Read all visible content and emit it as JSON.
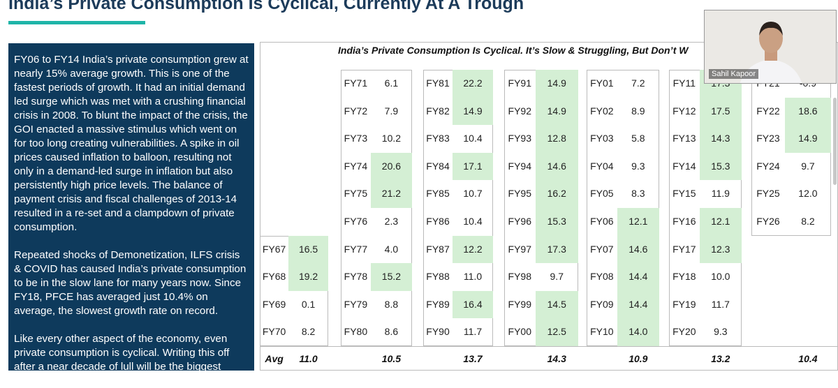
{
  "header": {
    "title": "India’s Private Consumption Is Cyclical, Currently At A Trough"
  },
  "sidebar": {
    "paragraphs": [
      "FY06 to FY14 India’s private consumption grew at nearly 15% average growth. This is one of the fastest periods of growth. It had an initial demand led surge which was met with a crushing financial crisis in 2008. To blunt the impact of the crisis, the GOI enacted a massive stimulus which went on for too long creating vulnerabilities. A spike in oil prices caused inflation to balloon, resulting not only in a demand-led surge in inflation but also persistently high price levels. The balance of payment crisis and fiscal challenges of 2013-14 resulted in a re-set and a clampdown of private consumption.",
      "Repeated shocks of Demonetization, ILFS crisis & COVID has caused India’s private consumption to be in the slow lane for many years now. Since FY18, PFCE has averaged just 10.4% on average, the slowest growth rate on record.",
      "Like every other aspect of the economy, even private consumption is cyclical. Writing this off after a near decade of lull will be the biggest cyclical mistakes of our times."
    ]
  },
  "table": {
    "title": "India’s Private Consumption Is Cyclical. It’s Slow & Struggling, But Don’t W",
    "avg_label": "Avg",
    "highlight_color": "#d4efd4",
    "groups": [
      {
        "avg": "11.0",
        "rows": [
          {
            "label": "FY67",
            "value": "16.5",
            "highlight": true
          },
          {
            "label": "FY68",
            "value": "19.2",
            "highlight": true
          },
          {
            "label": "FY69",
            "value": "0.1",
            "highlight": false
          },
          {
            "label": "FY70",
            "value": "8.2",
            "highlight": false
          }
        ]
      },
      {
        "avg": "10.5",
        "rows": [
          {
            "label": "FY71",
            "value": "6.1",
            "highlight": false
          },
          {
            "label": "FY72",
            "value": "7.9",
            "highlight": false
          },
          {
            "label": "FY73",
            "value": "10.2",
            "highlight": false
          },
          {
            "label": "FY74",
            "value": "20.6",
            "highlight": true
          },
          {
            "label": "FY75",
            "value": "21.2",
            "highlight": true
          },
          {
            "label": "FY76",
            "value": "2.3",
            "highlight": false
          },
          {
            "label": "FY77",
            "value": "4.0",
            "highlight": false
          },
          {
            "label": "FY78",
            "value": "15.2",
            "highlight": true
          },
          {
            "label": "FY79",
            "value": "8.8",
            "highlight": false
          },
          {
            "label": "FY80",
            "value": "8.6",
            "highlight": false
          }
        ]
      },
      {
        "avg": "13.7",
        "rows": [
          {
            "label": "FY81",
            "value": "22.2",
            "highlight": true
          },
          {
            "label": "FY82",
            "value": "14.9",
            "highlight": true
          },
          {
            "label": "FY83",
            "value": "10.4",
            "highlight": false
          },
          {
            "label": "FY84",
            "value": "17.1",
            "highlight": true
          },
          {
            "label": "FY85",
            "value": "10.7",
            "highlight": false
          },
          {
            "label": "FY86",
            "value": "10.4",
            "highlight": false
          },
          {
            "label": "FY87",
            "value": "12.2",
            "highlight": true
          },
          {
            "label": "FY88",
            "value": "11.0",
            "highlight": false
          },
          {
            "label": "FY89",
            "value": "16.4",
            "highlight": true
          },
          {
            "label": "FY90",
            "value": "11.7",
            "highlight": false
          }
        ]
      },
      {
        "avg": "14.3",
        "rows": [
          {
            "label": "FY91",
            "value": "14.9",
            "highlight": true
          },
          {
            "label": "FY92",
            "value": "14.9",
            "highlight": true
          },
          {
            "label": "FY93",
            "value": "12.8",
            "highlight": true
          },
          {
            "label": "FY94",
            "value": "14.6",
            "highlight": true
          },
          {
            "label": "FY95",
            "value": "16.2",
            "highlight": true
          },
          {
            "label": "FY96",
            "value": "15.3",
            "highlight": true
          },
          {
            "label": "FY97",
            "value": "17.3",
            "highlight": true
          },
          {
            "label": "FY98",
            "value": "9.7",
            "highlight": false
          },
          {
            "label": "FY99",
            "value": "14.5",
            "highlight": true
          },
          {
            "label": "FY00",
            "value": "12.5",
            "highlight": true
          }
        ]
      },
      {
        "avg": "10.9",
        "rows": [
          {
            "label": "FY01",
            "value": "7.2",
            "highlight": false
          },
          {
            "label": "FY02",
            "value": "8.9",
            "highlight": false
          },
          {
            "label": "FY03",
            "value": "5.8",
            "highlight": false
          },
          {
            "label": "FY04",
            "value": "9.3",
            "highlight": false
          },
          {
            "label": "FY05",
            "value": "8.3",
            "highlight": false
          },
          {
            "label": "FY06",
            "value": "12.1",
            "highlight": true
          },
          {
            "label": "FY07",
            "value": "14.6",
            "highlight": true
          },
          {
            "label": "FY08",
            "value": "14.4",
            "highlight": true
          },
          {
            "label": "FY09",
            "value": "14.4",
            "highlight": true
          },
          {
            "label": "FY10",
            "value": "14.0",
            "highlight": true
          }
        ]
      },
      {
        "avg": "13.2",
        "rows": [
          {
            "label": "FY11",
            "value": "17.3",
            "highlight": true
          },
          {
            "label": "FY12",
            "value": "17.5",
            "highlight": true
          },
          {
            "label": "FY13",
            "value": "14.3",
            "highlight": true
          },
          {
            "label": "FY14",
            "value": "15.3",
            "highlight": true
          },
          {
            "label": "FY15",
            "value": "11.9",
            "highlight": false
          },
          {
            "label": "FY16",
            "value": "12.1",
            "highlight": true
          },
          {
            "label": "FY17",
            "value": "12.3",
            "highlight": true
          },
          {
            "label": "FY18",
            "value": "10.0",
            "highlight": false
          },
          {
            "label": "FY19",
            "value": "11.7",
            "highlight": false
          },
          {
            "label": "FY20",
            "value": "9.3",
            "highlight": false
          }
        ]
      },
      {
        "avg": "10.4",
        "rows": [
          {
            "label": "FY21",
            "value": "-0.9",
            "highlight": false
          },
          {
            "label": "FY22",
            "value": "18.6",
            "highlight": true
          },
          {
            "label": "FY23",
            "value": "14.9",
            "highlight": true
          },
          {
            "label": "FY24",
            "value": "9.7",
            "highlight": false
          },
          {
            "label": "FY25",
            "value": "12.0",
            "highlight": false
          },
          {
            "label": "FY26",
            "value": "8.2",
            "highlight": false
          }
        ]
      }
    ]
  },
  "video": {
    "name": "Sahil Kapoor"
  }
}
